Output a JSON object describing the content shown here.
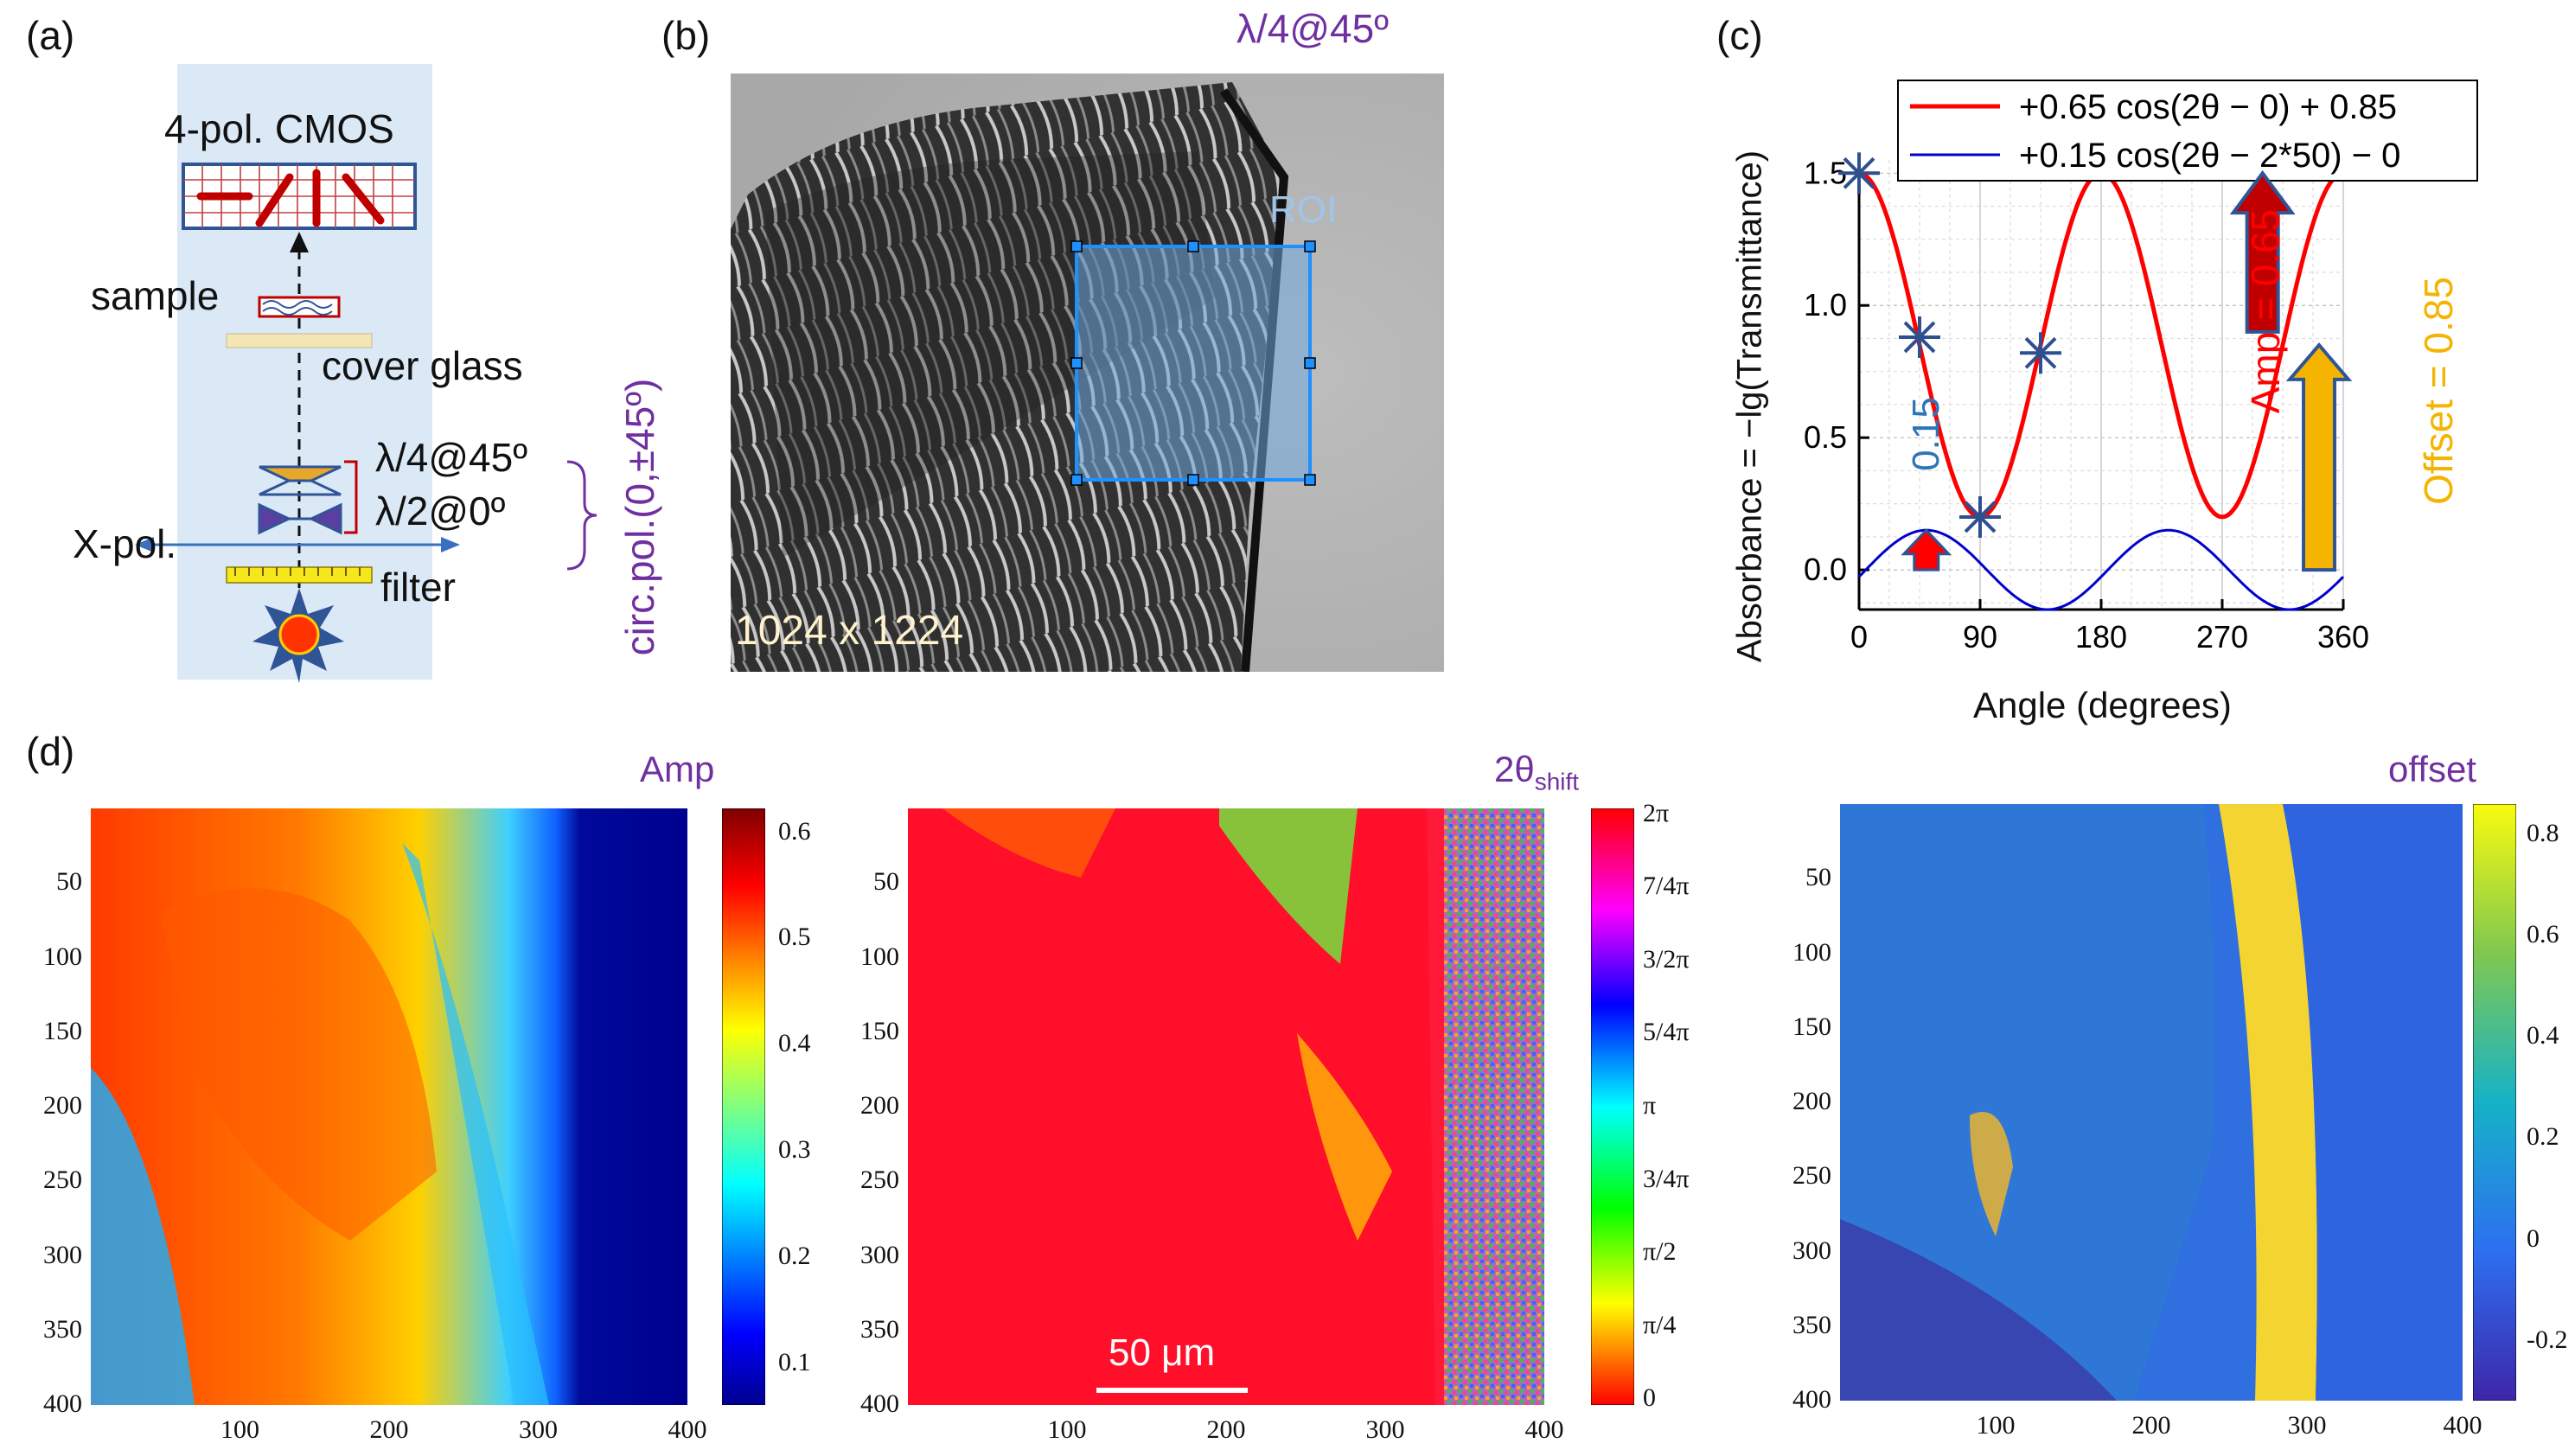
{
  "panel_labels": {
    "a": "(a)",
    "b": "(b)",
    "c": "(c)",
    "d": "(d)"
  },
  "panel_a": {
    "detector": "4-pol. CMOS",
    "sample": "sample",
    "cover_glass": "cover glass",
    "qwp": "λ/4@45º",
    "hwp": "λ/2@0º",
    "polarizer": "X-pol.",
    "filter": "filter",
    "circ_pol": "circ.pol.(0,±45º)"
  },
  "panel_b": {
    "top_label": "λ/4@45º",
    "roi": "ROI",
    "size": "1024 x 1224"
  },
  "panel_c": {
    "ylabel": "Absorbance = −lg(Transmittance)",
    "xlabel": "Angle (degrees)",
    "amp_label": "Amp = 0.65",
    "offset_label": "Offset = 0.85",
    "amp_small": "0.15"
  },
  "panel_d": {
    "amp_title": "Amp",
    "shift_title_main": "2θ",
    "shift_title_sub": "shift",
    "offset_title": "offset",
    "scalebar": "50 μm",
    "amp_cbar_ticks": [
      "0.6",
      "0.5",
      "0.4",
      "0.3",
      "0.2",
      "0.1"
    ],
    "shift_cbar_ticks": [
      "2π",
      "7/4π",
      "3/2π",
      "5/4π",
      "π",
      "3/4π",
      "π/2",
      "π/4",
      "0"
    ],
    "offset_cbar_ticks": [
      "0.8",
      "0.6",
      "0.4",
      "0.2",
      "0",
      "-0.2"
    ],
    "y_ticks": [
      "50",
      "100",
      "150",
      "200",
      "250",
      "300",
      "350",
      "400"
    ],
    "x_ticks": [
      "100",
      "200",
      "300",
      "400"
    ]
  },
  "chart_data": {
    "type": "line",
    "xlabel": "Angle (degrees)",
    "ylabel": "Absorbance = −lg(Transmittance)",
    "xlim": [
      0,
      360
    ],
    "ylim": [
      -0.15,
      1.55
    ],
    "x_ticks": [
      0,
      90,
      180,
      270,
      360
    ],
    "y_ticks": [
      0.0,
      0.5,
      1.0,
      1.5
    ],
    "grid": true,
    "legend_position": "top",
    "series": [
      {
        "name": "+0.65 cos(2θ − 0) + 0.85",
        "color": "#ff0000",
        "amp": 0.65,
        "phase_deg": 0,
        "offset": 0.85
      },
      {
        "name": "+0.15 cos(2θ − 2*50) − 0",
        "color": "#0000cc",
        "amp": 0.15,
        "phase_deg": 100,
        "offset": 0
      }
    ],
    "markers": [
      {
        "x": 0,
        "y": 1.5
      },
      {
        "x": 45,
        "y": 0.88
      },
      {
        "x": 90,
        "y": 0.2
      },
      {
        "x": 135,
        "y": 0.82
      }
    ]
  }
}
